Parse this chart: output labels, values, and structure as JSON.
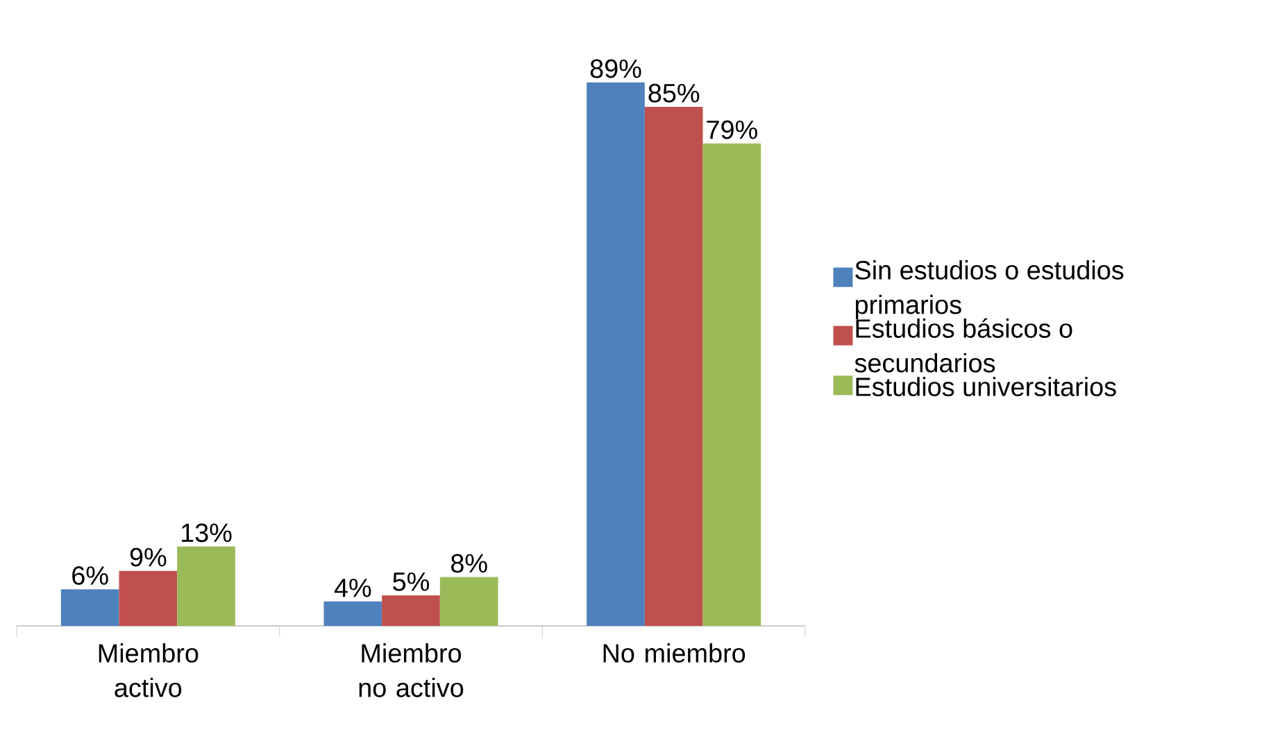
{
  "chart_data": {
    "type": "bar",
    "categories": [
      "Miembro activo",
      "Miembro no activo",
      "No miembro"
    ],
    "series": [
      {
        "name": "Sin estudios o estudios primarios",
        "color": "#4f81bd",
        "values": [
          6,
          4,
          89
        ],
        "value_labels": [
          "6%",
          "4%",
          "89%"
        ]
      },
      {
        "name": "Estudios básicos o secundarios",
        "color": "#c0504d",
        "values": [
          9,
          5,
          85
        ],
        "value_labels": [
          "9%",
          "5%",
          "85%"
        ]
      },
      {
        "name": "Estudios universitarios",
        "color": "#9bbb59",
        "values": [
          13,
          8,
          79
        ],
        "value_labels": [
          "13%",
          "8%",
          "79%"
        ]
      }
    ],
    "legend": "right"
  }
}
